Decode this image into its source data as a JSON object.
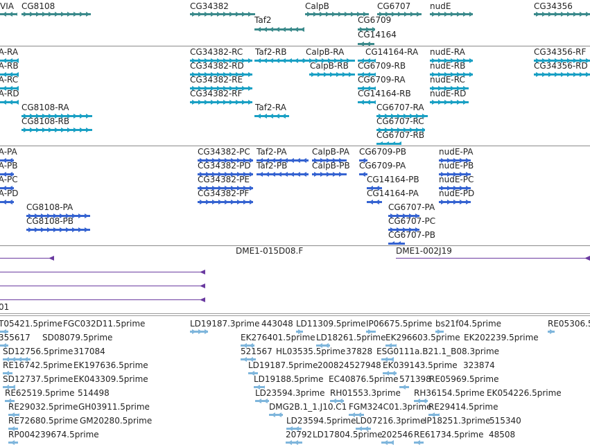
{
  "colors": {
    "gene": "#3b8a8b",
    "mrna": "#1aa0c4",
    "protein": "#3563d1",
    "clone": "#6a3aa0",
    "est": "#7fb6dc"
  },
  "genes_track": {
    "labels": [
      "VIA",
      "CG8108",
      "CG34382",
      "CalpB",
      "CG6707",
      "nudE",
      "CG34356",
      "Taf2",
      "CG6709",
      "CG14164"
    ]
  },
  "transcripts_track": {
    "labels": [
      "VIA-RA",
      "VIA-RB",
      "VIA-RC",
      "VIA-RD",
      "CG8108-RA",
      "CG8108-RB",
      "CG34382-RC",
      "CG34382-RD",
      "CG34382-RE",
      "CG34382-RF",
      "Taf2-RB",
      "Taf2-RA",
      "CalpB-RA",
      "CalpB-RB",
      "CG14164-RA",
      "CG6709-RB",
      "CG6709-RA",
      "CG14164-RB",
      "CG6707-RA",
      "CG6707-RC",
      "CG6707-RB",
      "nudE-RA",
      "nudE-RB",
      "nudE-RC",
      "nudE-RD",
      "CG34356-RF",
      "CG34356-RD"
    ]
  },
  "proteins_track": {
    "labels": [
      "VIA-PA",
      "VIA-PB",
      "VIA-PC",
      "VIA-PD",
      "CG8108-PA",
      "CG8108-PB",
      "CG34382-PC",
      "CG34382-PD",
      "CG34382-PE",
      "CG34382-PF",
      "Taf2-PA",
      "Taf2-PB",
      "CalpB-PA",
      "CalpB-PB",
      "CG6709-PB",
      "CG6709-PA",
      "CG14164-PB",
      "CG14164-PA",
      "CG6707-PA",
      "CG6707-PC",
      "CG6707-PB",
      "nudE-PA",
      "nudE-PB",
      "nudE-PC",
      "nudE-PD"
    ]
  },
  "clones_track": {
    "labels": [
      "DME1-015D08.F",
      "DME1-002J19",
      "01"
    ]
  },
  "ests_track": {
    "labels": [
      "T05421.5prime",
      "FGC032D11.5prime",
      "LD19187.3prime",
      "443048",
      "LD11309.5prime",
      "IP06675.5prime",
      "bs21f04.5prime",
      "RE05306.5",
      "355617",
      "SD08079.5prime",
      "EK276401.5prime",
      "LD18261.5prime",
      "EK296603.5prime",
      "EK202239.5prime",
      "SD12756.5prime",
      "317084",
      "521567",
      "HL03535.5prime",
      "37828",
      "ESG0111a.B21.1_B08.3prime",
      "RE16742.5prime",
      "EK197636.5prime",
      "LD19187.5prime",
      "200824",
      "527948",
      "EK039143.5prime",
      "323874",
      "SD12737.5prime",
      "EK043309.5prime",
      "LD19188.5prime",
      "EC40876.5prime",
      "571398",
      "RE05969.5prime",
      "RE62519.5prime",
      "514498",
      "LD23594.3prime",
      "RH01553.3prime",
      "RH36154.5prime",
      "EK054226.5prime",
      "RE29032.5prime",
      "GH03911.5prime",
      "DMG2B.1_1.J10.C1",
      "FGM324C01.3prime",
      "RE29414.5prime",
      "RE72680.5prime",
      "GM20280.5prime",
      "LD23594.5prime",
      "LD07216.3prime",
      "IP18251.3prime",
      "515340",
      "RP004239674.5prime",
      "20792",
      "LD17804.5prime",
      "202546",
      "RE61734.5prime",
      "48508"
    ]
  }
}
